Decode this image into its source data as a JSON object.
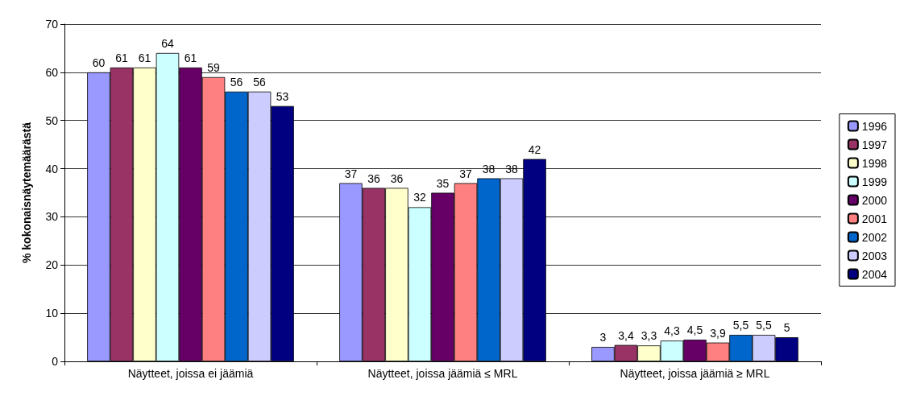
{
  "chart_data": {
    "type": "bar",
    "ylabel": "% kokonaisnäytemäärästä",
    "categories": [
      "Näytteet, joissa ei jäämiä",
      "Näytteet, joissa jäämiä ≤ MRL",
      "Näytteet, joissa jäämiä ≥ MRL"
    ],
    "series": [
      {
        "name": "1996",
        "color": "#9999ff",
        "values": [
          60,
          37,
          3
        ],
        "value_labels": [
          "60",
          "37",
          "3"
        ]
      },
      {
        "name": "1997",
        "color": "#993366",
        "values": [
          61,
          36,
          3.4
        ],
        "value_labels": [
          "61",
          "36",
          "3,4"
        ]
      },
      {
        "name": "1998",
        "color": "#ffffcc",
        "values": [
          61,
          36,
          3.3
        ],
        "value_labels": [
          "61",
          "36",
          "3,3"
        ]
      },
      {
        "name": "1999",
        "color": "#ccffff",
        "values": [
          64,
          32,
          4.3
        ],
        "value_labels": [
          "64",
          "32",
          "4,3"
        ]
      },
      {
        "name": "2000",
        "color": "#660066",
        "values": [
          61,
          35,
          4.5
        ],
        "value_labels": [
          "61",
          "35",
          "4,5"
        ]
      },
      {
        "name": "2001",
        "color": "#ff8080",
        "values": [
          59,
          37,
          3.9
        ],
        "value_labels": [
          "59",
          "37",
          "3,9"
        ]
      },
      {
        "name": "2002",
        "color": "#0066cc",
        "values": [
          56,
          38,
          5.5
        ],
        "value_labels": [
          "56",
          "38",
          "5,5"
        ]
      },
      {
        "name": "2003",
        "color": "#ccccff",
        "values": [
          56,
          38,
          5.5
        ],
        "value_labels": [
          "56",
          "38",
          "5,5"
        ]
      },
      {
        "name": "2004",
        "color": "#000080",
        "values": [
          53,
          42,
          5
        ],
        "value_labels": [
          "53",
          "42",
          "5"
        ]
      }
    ],
    "ylim": [
      0,
      70
    ],
    "yticks": [
      0,
      10,
      20,
      30,
      40,
      50,
      60,
      70
    ],
    "grid": "y",
    "legend": "right"
  }
}
